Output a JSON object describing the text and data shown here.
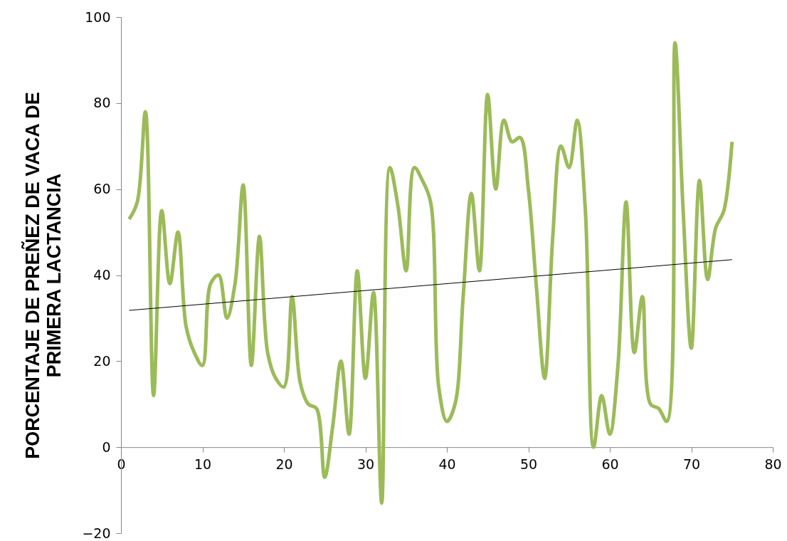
{
  "chart_data": {
    "type": "line",
    "ylabel": "PORCENTAJE DE PREÑEZ DE VACA DE PRIMERA LACTANCIA",
    "x": [
      1,
      2,
      3,
      4,
      5,
      6,
      7,
      8,
      9,
      10,
      11,
      12,
      13,
      14,
      15,
      16,
      17,
      18,
      19,
      20,
      21,
      22,
      23,
      24,
      25,
      26,
      27,
      28,
      29,
      30,
      31,
      32,
      33,
      34,
      35,
      36,
      37,
      38,
      39,
      40,
      41,
      42,
      43,
      44,
      45,
      46,
      47,
      48,
      49,
      50,
      51,
      52,
      53,
      54,
      55,
      56,
      57,
      58,
      59,
      60,
      61,
      62,
      63,
      64,
      65,
      66,
      67,
      68,
      69,
      70,
      71,
      72,
      73,
      74,
      75
    ],
    "series": [
      {
        "color": "#9bbb59",
        "values": [
          53,
          57,
          78,
          12,
          55,
          38,
          50,
          28,
          22,
          19,
          38,
          40,
          30,
          38,
          61,
          19,
          49,
          22,
          16,
          14,
          35,
          15,
          10,
          9,
          -7,
          5,
          20,
          3,
          41,
          16,
          36,
          -13,
          65,
          56,
          41,
          65,
          62,
          57,
          14,
          6,
          10,
          35,
          59,
          41,
          82,
          60,
          76,
          71,
          72,
          60,
          37,
          16,
          49,
          70,
          65,
          76,
          55,
          0,
          12,
          3,
          19,
          57,
          22,
          35,
          10,
          9,
          6,
          94,
          55,
          23,
          62,
          39,
          51,
          55,
          71
        ]
      },
      {
        "type": "line",
        "color": "#000000",
        "x": [
          1,
          75
        ],
        "values": [
          31.8,
          43.6
        ]
      }
    ],
    "xlim": [
      0,
      80
    ],
    "xticks": [
      0,
      10,
      20,
      30,
      40,
      50,
      60,
      70,
      80
    ],
    "ylim": [
      -20,
      100
    ],
    "yticks": [
      -20,
      0,
      20,
      40,
      60,
      80,
      100
    ]
  }
}
